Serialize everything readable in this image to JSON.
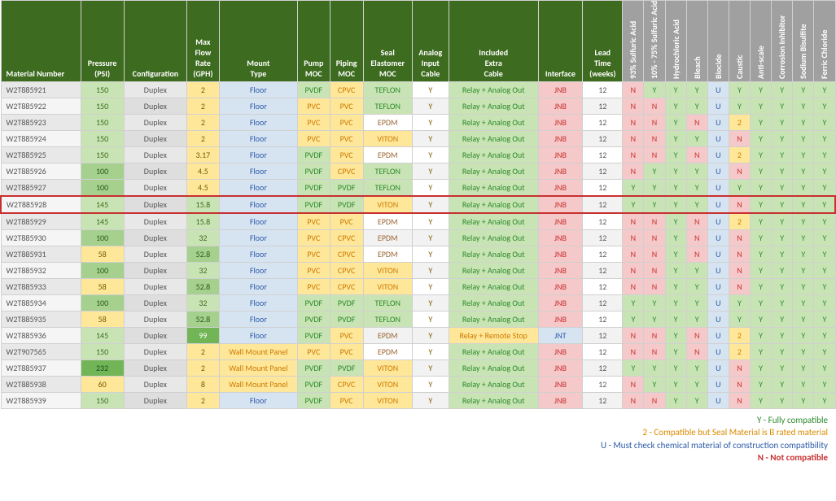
{
  "colors": {
    "header_green": "#3d6b1f",
    "header_grey": "#a0a0a0",
    "alt_row": "#f2f2f2",
    "light_green_bg": "#c9e4b4",
    "med_green_bg": "#a5d08e",
    "dark_green_bg": "#71b556",
    "yellow_bg": "#ffe79a",
    "blue_bg": "#d6e4f2",
    "pink_bg": "#f5c9c9",
    "grey_bg": "#e8e8e8",
    "orange_text": "#cc7a00",
    "green_text": "#2d8a2d",
    "blue_text": "#2d5aa8",
    "red_text": "#c83030",
    "brown_text": "#996633",
    "dark_text": "#555555"
  },
  "headers": {
    "main": [
      "Material Number",
      "Pressure (PSI)",
      "Configuration",
      "Max Flow Rate (GPH)",
      "Mount Type",
      "Pump MOC",
      "Piping MOC",
      "Seal Elastomer MOC",
      "Analog Input Cable",
      "Included Extra Cable",
      "Interface",
      "Lead Time (weeks)"
    ],
    "compat": [
      "93% Sulfuric Acid",
      "10% - 75% Sulfuric Acid",
      "Hydrochloric Acid",
      "Bleach",
      "Biocide",
      "Caustic",
      "Anti-scale",
      "Corrosion Inhibitor",
      "Sodium Bisulfite",
      "Ferric Chloride"
    ]
  },
  "legend": {
    "y": "Y - Fully compatible",
    "two": "2 - Compatible but Seal Material is B rated material",
    "u": "U - Must check chemical material of construction compatibility",
    "n": "N - Not compatible"
  },
  "rows": [
    {
      "id": "W2T885921",
      "psi": "150",
      "cfg": "Duplex",
      "flow": "2",
      "mount": "Floor",
      "pump": "PVDF",
      "pipe": "CPVC",
      "seal": "TEFLON",
      "analog": "Y",
      "cable": "Relay + Analog Out",
      "iface": "JNB",
      "lead": "12",
      "compat": [
        "N",
        "Y",
        "Y",
        "Y",
        "U",
        "Y",
        "Y",
        "Y",
        "Y",
        "Y"
      ],
      "alt": false,
      "hl": false
    },
    {
      "id": "W2T885922",
      "psi": "150",
      "cfg": "Duplex",
      "flow": "2",
      "mount": "Floor",
      "pump": "PVC",
      "pipe": "PVC",
      "seal": "TEFLON",
      "analog": "Y",
      "cable": "Relay + Analog Out",
      "iface": "JNB",
      "lead": "12",
      "compat": [
        "N",
        "N",
        "Y",
        "Y",
        "U",
        "Y",
        "Y",
        "Y",
        "Y",
        "Y"
      ],
      "alt": true,
      "hl": false
    },
    {
      "id": "W2T885923",
      "psi": "150",
      "cfg": "Duplex",
      "flow": "2",
      "mount": "Floor",
      "pump": "PVC",
      "pipe": "PVC",
      "seal": "EPDM",
      "analog": "Y",
      "cable": "Relay + Analog Out",
      "iface": "JNB",
      "lead": "12",
      "compat": [
        "N",
        "N",
        "Y",
        "N",
        "U",
        "2",
        "Y",
        "Y",
        "Y",
        "Y"
      ],
      "alt": false,
      "hl": false
    },
    {
      "id": "W2T885924",
      "psi": "150",
      "cfg": "Duplex",
      "flow": "2",
      "mount": "Floor",
      "pump": "PVC",
      "pipe": "PVC",
      "seal": "VITON",
      "analog": "Y",
      "cable": "Relay + Analog Out",
      "iface": "JNB",
      "lead": "12",
      "compat": [
        "N",
        "N",
        "Y",
        "Y",
        "U",
        "N",
        "Y",
        "Y",
        "Y",
        "Y"
      ],
      "alt": true,
      "hl": false
    },
    {
      "id": "W2T885925",
      "psi": "150",
      "cfg": "Duplex",
      "flow": "3.17",
      "mount": "Floor",
      "pump": "PVDF",
      "pipe": "PVC",
      "seal": "EPDM",
      "analog": "Y",
      "cable": "Relay + Analog Out",
      "iface": "JNB",
      "lead": "12",
      "compat": [
        "N",
        "N",
        "Y",
        "N",
        "U",
        "2",
        "Y",
        "Y",
        "Y",
        "Y"
      ],
      "alt": false,
      "hl": false
    },
    {
      "id": "W2T885926",
      "psi": "100",
      "cfg": "Duplex",
      "flow": "4.5",
      "mount": "Floor",
      "pump": "PVDF",
      "pipe": "CPVC",
      "seal": "TEFLON",
      "analog": "Y",
      "cable": "Relay + Analog Out",
      "iface": "JNB",
      "lead": "12",
      "compat": [
        "N",
        "Y",
        "Y",
        "Y",
        "U",
        "N",
        "Y",
        "Y",
        "Y",
        "Y"
      ],
      "alt": true,
      "hl": false
    },
    {
      "id": "W2T885927",
      "psi": "100",
      "cfg": "Duplex",
      "flow": "4.5",
      "mount": "Floor",
      "pump": "PVDF",
      "pipe": "PVDF",
      "seal": "TEFLON",
      "analog": "Y",
      "cable": "Relay + Analog Out",
      "iface": "JNB",
      "lead": "12",
      "compat": [
        "Y",
        "Y",
        "Y",
        "Y",
        "U",
        "Y",
        "Y",
        "Y",
        "Y",
        "Y"
      ],
      "alt": false,
      "hl": false
    },
    {
      "id": "W2T885928",
      "psi": "145",
      "cfg": "Duplex",
      "flow": "15.8",
      "mount": "Floor",
      "pump": "PVDF",
      "pipe": "PVDF",
      "seal": "VITON",
      "analog": "Y",
      "cable": "Relay + Analog Out",
      "iface": "JNB",
      "lead": "12",
      "compat": [
        "Y",
        "Y",
        "Y",
        "Y",
        "U",
        "N",
        "Y",
        "Y",
        "Y",
        "Y"
      ],
      "alt": true,
      "hl": true
    },
    {
      "id": "W2T885929",
      "psi": "145",
      "cfg": "Duplex",
      "flow": "15.8",
      "mount": "Floor",
      "pump": "PVC",
      "pipe": "PVC",
      "seal": "EPDM",
      "analog": "Y",
      "cable": "Relay + Analog Out",
      "iface": "JNB",
      "lead": "12",
      "compat": [
        "N",
        "N",
        "Y",
        "N",
        "U",
        "2",
        "Y",
        "Y",
        "Y",
        "Y"
      ],
      "alt": false,
      "hl": false
    },
    {
      "id": "W2T885930",
      "psi": "100",
      "cfg": "Duplex",
      "flow": "32",
      "mount": "Floor",
      "pump": "PVC",
      "pipe": "CPVC",
      "seal": "EPDM",
      "analog": "Y",
      "cable": "Relay + Analog Out",
      "iface": "JNB",
      "lead": "12",
      "compat": [
        "N",
        "N",
        "Y",
        "N",
        "U",
        "N",
        "Y",
        "Y",
        "Y",
        "Y"
      ],
      "alt": true,
      "hl": false
    },
    {
      "id": "W2T885931",
      "psi": "58",
      "cfg": "Duplex",
      "flow": "52.8",
      "mount": "Floor",
      "pump": "PVC",
      "pipe": "CPVC",
      "seal": "EPDM",
      "analog": "Y",
      "cable": "Relay + Analog Out",
      "iface": "JNB",
      "lead": "12",
      "compat": [
        "N",
        "N",
        "Y",
        "N",
        "U",
        "N",
        "Y",
        "Y",
        "Y",
        "Y"
      ],
      "alt": false,
      "hl": false
    },
    {
      "id": "W2T885932",
      "psi": "100",
      "cfg": "Duplex",
      "flow": "32",
      "mount": "Floor",
      "pump": "PVC",
      "pipe": "CPVC",
      "seal": "VITON",
      "analog": "Y",
      "cable": "Relay + Analog Out",
      "iface": "JNB",
      "lead": "12",
      "compat": [
        "N",
        "N",
        "Y",
        "Y",
        "U",
        "N",
        "Y",
        "Y",
        "Y",
        "Y"
      ],
      "alt": true,
      "hl": false
    },
    {
      "id": "W2T885933",
      "psi": "58",
      "cfg": "Duplex",
      "flow": "52.8",
      "mount": "Floor",
      "pump": "PVC",
      "pipe": "CPVC",
      "seal": "VITON",
      "analog": "Y",
      "cable": "Relay + Analog Out",
      "iface": "JNB",
      "lead": "12",
      "compat": [
        "N",
        "N",
        "Y",
        "Y",
        "U",
        "N",
        "Y",
        "Y",
        "Y",
        "Y"
      ],
      "alt": false,
      "hl": false
    },
    {
      "id": "W2T885934",
      "psi": "100",
      "cfg": "Duplex",
      "flow": "32",
      "mount": "Floor",
      "pump": "PVDF",
      "pipe": "PVDF",
      "seal": "TEFLON",
      "analog": "Y",
      "cable": "Relay + Analog Out",
      "iface": "JNB",
      "lead": "12",
      "compat": [
        "Y",
        "Y",
        "Y",
        "Y",
        "U",
        "Y",
        "Y",
        "Y",
        "Y",
        "Y"
      ],
      "alt": true,
      "hl": false
    },
    {
      "id": "W2T885935",
      "psi": "58",
      "cfg": "Duplex",
      "flow": "52.8",
      "mount": "Floor",
      "pump": "PVDF",
      "pipe": "PVDF",
      "seal": "TEFLON",
      "analog": "Y",
      "cable": "Relay + Analog Out",
      "iface": "JNB",
      "lead": "12",
      "compat": [
        "Y",
        "Y",
        "Y",
        "Y",
        "U",
        "Y",
        "Y",
        "Y",
        "Y",
        "Y"
      ],
      "alt": false,
      "hl": false
    },
    {
      "id": "W2T885936",
      "psi": "145",
      "cfg": "Duplex",
      "flow": "99",
      "mount": "Floor",
      "pump": "PVDF",
      "pipe": "PVC",
      "seal": "EPDM",
      "analog": "Y",
      "cable": "Relay + Remote Stop",
      "iface": "JNT",
      "lead": "12",
      "compat": [
        "N",
        "N",
        "Y",
        "N",
        "U",
        "2",
        "Y",
        "Y",
        "Y",
        "Y"
      ],
      "alt": true,
      "hl": false
    },
    {
      "id": "W2T907565",
      "psi": "150",
      "cfg": "Duplex",
      "flow": "2",
      "mount": "Wall Mount Panel",
      "pump": "PVC",
      "pipe": "PVC",
      "seal": "EPDM",
      "analog": "Y",
      "cable": "Relay + Analog Out",
      "iface": "JNB",
      "lead": "12",
      "compat": [
        "N",
        "N",
        "Y",
        "N",
        "U",
        "2",
        "Y",
        "Y",
        "Y",
        "Y"
      ],
      "alt": false,
      "hl": false
    },
    {
      "id": "W2T885937",
      "psi": "232",
      "cfg": "Duplex",
      "flow": "2",
      "mount": "Wall Mount Panel",
      "pump": "PVDF",
      "pipe": "PVDF",
      "seal": "VITON",
      "analog": "Y",
      "cable": "Relay + Analog Out",
      "iface": "JNB",
      "lead": "12",
      "compat": [
        "Y",
        "Y",
        "Y",
        "Y",
        "U",
        "N",
        "Y",
        "Y",
        "Y",
        "Y"
      ],
      "alt": true,
      "hl": false
    },
    {
      "id": "W2T885938",
      "psi": "60",
      "cfg": "Duplex",
      "flow": "8",
      "mount": "Wall Mount Panel",
      "pump": "PVDF",
      "pipe": "CPVC",
      "seal": "VITON",
      "analog": "Y",
      "cable": "Relay + Analog Out",
      "iface": "JNB",
      "lead": "12",
      "compat": [
        "N",
        "Y",
        "Y",
        "Y",
        "U",
        "N",
        "Y",
        "Y",
        "Y",
        "Y"
      ],
      "alt": false,
      "hl": false
    },
    {
      "id": "W2T885939",
      "psi": "150",
      "cfg": "Duplex",
      "flow": "2",
      "mount": "Floor",
      "pump": "PVDF",
      "pipe": "PVC",
      "seal": "VITON",
      "analog": "Y",
      "cable": "Relay + Analog Out",
      "iface": "JNB",
      "lead": "12",
      "compat": [
        "N",
        "N",
        "Y",
        "Y",
        "U",
        "N",
        "Y",
        "Y",
        "Y",
        "Y"
      ],
      "alt": true,
      "hl": false
    }
  ]
}
